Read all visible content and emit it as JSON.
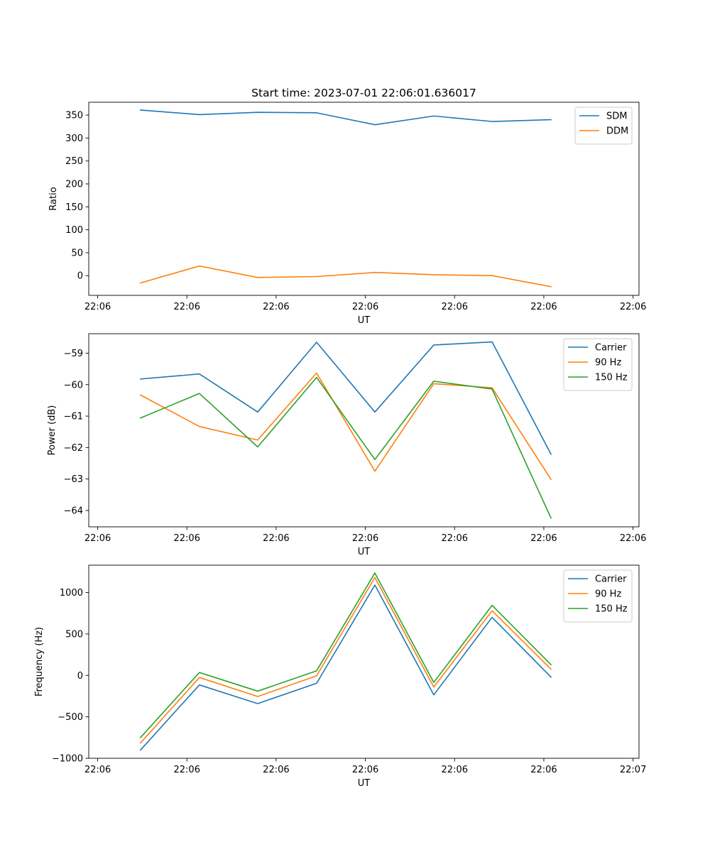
{
  "chart_data": [
    {
      "type": "line",
      "title": "Start time: 2023-07-01 22:06:01.636017",
      "xlabel": "UT",
      "ylabel": "Ratio",
      "xlim": [
        -0.65,
        8.6
      ],
      "ylim": [
        -43,
        378
      ],
      "xticks": [
        -0.5,
        1,
        2.5,
        4,
        5.5,
        7,
        8.5
      ],
      "xtick_labels": [
        "22:06",
        "22:06",
        "22:06",
        "22:06",
        "22:06",
        "22:06",
        "22:06"
      ],
      "yticks": [
        0,
        50,
        100,
        150,
        200,
        250,
        300,
        350
      ],
      "ytick_labels": [
        "0",
        "50",
        "100",
        "150",
        "200",
        "250",
        "300",
        "350"
      ],
      "legend": "top-right",
      "x": [
        0.22,
        1.21,
        2.19,
        3.18,
        4.16,
        5.15,
        6.13,
        7.12
      ],
      "series": [
        {
          "name": "SDM",
          "color": "#1f77b4",
          "values": [
            361,
            351,
            356,
            355,
            329,
            348,
            336,
            340
          ]
        },
        {
          "name": "DDM",
          "color": "#ff7f0e",
          "values": [
            -16,
            21,
            -4,
            -2,
            7,
            2,
            0,
            -24
          ]
        }
      ]
    },
    {
      "type": "line",
      "title": "",
      "xlabel": "UT",
      "ylabel": "Power (dB)",
      "xlim": [
        -0.65,
        8.6
      ],
      "ylim": [
        -64.52,
        -58.38
      ],
      "xticks": [
        -0.5,
        1,
        2.5,
        4,
        5.5,
        7,
        8.5
      ],
      "xtick_labels": [
        "22:06",
        "22:06",
        "22:06",
        "22:06",
        "22:06",
        "22:06",
        "22:06"
      ],
      "yticks": [
        -64,
        -63,
        -62,
        -61,
        -60,
        -59
      ],
      "ytick_labels": [
        "−64",
        "−63",
        "−62",
        "−61",
        "−60",
        "−59"
      ],
      "legend": "top-right",
      "x": [
        0.22,
        1.21,
        2.19,
        3.18,
        4.16,
        5.15,
        6.13,
        7.12
      ],
      "series": [
        {
          "name": "Carrier",
          "color": "#1f77b4",
          "values": [
            -59.82,
            -59.66,
            -60.87,
            -58.65,
            -60.87,
            -58.74,
            -58.64,
            -62.21
          ]
        },
        {
          "name": "90 Hz",
          "color": "#ff7f0e",
          "values": [
            -60.33,
            -61.33,
            -61.76,
            -59.63,
            -62.75,
            -59.97,
            -60.1,
            -63.01
          ]
        },
        {
          "name": "150 Hz",
          "color": "#2ca02c",
          "values": [
            -61.06,
            -60.28,
            -61.98,
            -59.77,
            -62.38,
            -59.89,
            -60.14,
            -64.24
          ]
        }
      ]
    },
    {
      "type": "line",
      "title": "",
      "xlabel": "UT",
      "ylabel": "Frequency (Hz)",
      "xlim": [
        -0.65,
        8.6
      ],
      "ylim": [
        -1000,
        1330
      ],
      "xticks": [
        -0.5,
        1,
        2.5,
        4,
        5.5,
        7,
        8.5
      ],
      "xtick_labels": [
        "22:06",
        "22:06",
        "22:06",
        "22:06",
        "22:06",
        "22:06",
        "22:07"
      ],
      "yticks": [
        -1000,
        -500,
        0,
        500,
        1000
      ],
      "ytick_labels": [
        "−1000",
        "−500",
        "0",
        "500",
        "1000"
      ],
      "legend": "top-right",
      "x": [
        0.22,
        1.21,
        2.19,
        3.18,
        4.16,
        5.15,
        6.13,
        7.12
      ],
      "series": [
        {
          "name": "Carrier",
          "color": "#1f77b4",
          "values": [
            -900,
            -115,
            -340,
            -95,
            1090,
            -235,
            700,
            -20
          ]
        },
        {
          "name": "90 Hz",
          "color": "#ff7f0e",
          "values": [
            -815,
            -25,
            -255,
            -5,
            1180,
            -140,
            780,
            75
          ]
        },
        {
          "name": "150 Hz",
          "color": "#2ca02c",
          "values": [
            -750,
            35,
            -190,
            55,
            1235,
            -85,
            845,
            130
          ]
        }
      ]
    }
  ]
}
